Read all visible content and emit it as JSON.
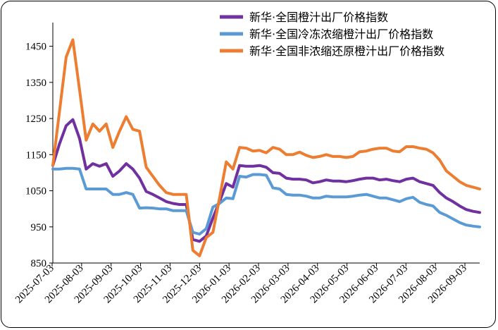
{
  "chart_data": {
    "type": "line",
    "title": "",
    "xlabel": "",
    "ylabel": "",
    "ylim": [
      850,
      1500
    ],
    "yticks": [
      850,
      950,
      1050,
      1150,
      1250,
      1350,
      1450
    ],
    "grid": false,
    "legend_position": "top-right",
    "x_tick_labels": [
      "2025-07-03",
      "2025-08-03",
      "2025-09-03",
      "2025-10-03",
      "2025-11-03",
      "2025-12-03",
      "2026-01-03",
      "2026-02-03",
      "2026-03-03",
      "2026-04-03",
      "2026-05-03",
      "2026-06-03",
      "2026-07-03",
      "2026-08-03",
      "2026-09-03"
    ],
    "series": [
      {
        "name": "新华·全国橙汁出厂价格指数",
        "color": "#7030A0",
        "values": [
          1120,
          1180,
          1230,
          1247,
          1195,
          1110,
          1125,
          1118,
          1125,
          1090,
          1105,
          1125,
          1110,
          1085,
          1048,
          1040,
          1030,
          1020,
          1015,
          1012,
          1012,
          915,
          910,
          925,
          975,
          1020,
          1070,
          1060,
          1120,
          1118,
          1118,
          1120,
          1115,
          1100,
          1098,
          1085,
          1082,
          1082,
          1080,
          1072,
          1075,
          1080,
          1077,
          1077,
          1075,
          1078,
          1082,
          1085,
          1085,
          1080,
          1082,
          1078,
          1075,
          1082,
          1085,
          1075,
          1070,
          1065,
          1045,
          1030,
          1020,
          1008,
          998,
          993,
          990
        ]
      },
      {
        "name": "新华·全国冷冻浓缩橙汁出厂价格指数",
        "color": "#5B9BD5",
        "values": [
          1110,
          1110,
          1112,
          1112,
          1110,
          1055,
          1055,
          1055,
          1055,
          1040,
          1040,
          1045,
          1040,
          1002,
          1003,
          1002,
          1000,
          1000,
          995,
          995,
          995,
          935,
          930,
          945,
          1005,
          1015,
          1030,
          1028,
          1090,
          1088,
          1095,
          1095,
          1093,
          1058,
          1055,
          1040,
          1038,
          1038,
          1035,
          1030,
          1030,
          1035,
          1033,
          1033,
          1033,
          1035,
          1038,
          1040,
          1035,
          1030,
          1030,
          1025,
          1020,
          1028,
          1032,
          1018,
          1012,
          1008,
          990,
          982,
          972,
          962,
          955,
          952,
          950
        ]
      },
      {
        "name": "新华·全国非浓缩还原橙汁出厂价格指数",
        "color": "#ED7D31",
        "values": [
          1120,
          1270,
          1420,
          1468,
          1330,
          1190,
          1235,
          1215,
          1235,
          1170,
          1215,
          1255,
          1220,
          1215,
          1115,
          1090,
          1065,
          1045,
          1040,
          1040,
          1040,
          885,
          870,
          920,
          935,
          1030,
          1130,
          1110,
          1170,
          1168,
          1160,
          1162,
          1155,
          1170,
          1165,
          1150,
          1150,
          1157,
          1148,
          1142,
          1145,
          1150,
          1145,
          1145,
          1142,
          1145,
          1158,
          1160,
          1165,
          1168,
          1168,
          1160,
          1158,
          1172,
          1172,
          1168,
          1165,
          1155,
          1135,
          1105,
          1090,
          1075,
          1065,
          1060,
          1055
        ]
      }
    ]
  }
}
